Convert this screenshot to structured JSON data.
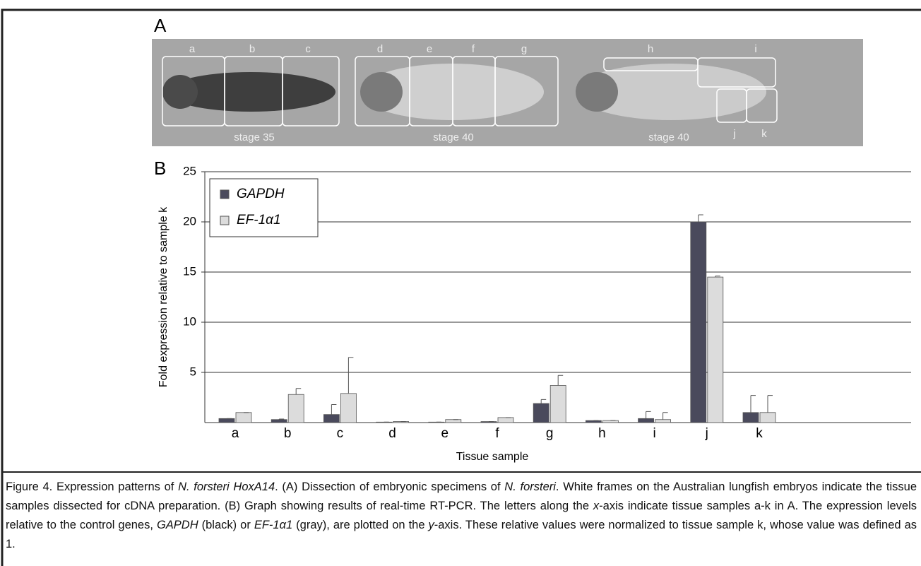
{
  "panel_a": {
    "label": "A",
    "sample_labels": [
      "a",
      "b",
      "c",
      "d",
      "e",
      "f",
      "g",
      "h",
      "i",
      "j",
      "k"
    ],
    "stage_labels": [
      "stage 35",
      "stage 40",
      "stage 40"
    ]
  },
  "panel_b": {
    "label": "B"
  },
  "chart_data": {
    "type": "bar",
    "y_label": "Fold expression relative to sample k",
    "x_label": "Tissue sample",
    "categories": [
      "a",
      "b",
      "c",
      "d",
      "e",
      "f",
      "g",
      "h",
      "i",
      "j",
      "k"
    ],
    "series": [
      {
        "name": "GAPDH",
        "color": "#4a4a5c",
        "values": [
          0.4,
          0.3,
          0.8,
          0.05,
          0.05,
          0.1,
          1.9,
          0.2,
          0.4,
          20,
          1.0
        ],
        "errors": [
          0,
          0.05,
          1.0,
          0,
          0,
          0,
          0.4,
          0,
          0.7,
          0.7,
          1.7
        ]
      },
      {
        "name": "EF-1α1",
        "color": "#dcdcdc",
        "values": [
          1.0,
          2.8,
          2.9,
          0.1,
          0.3,
          0.5,
          3.7,
          0.2,
          0.3,
          14.5,
          1.0
        ],
        "errors": [
          0,
          0.6,
          3.6,
          0,
          0,
          0,
          1.0,
          0,
          0.7,
          0.1,
          1.7
        ]
      }
    ],
    "ylim": [
      0,
      25
    ],
    "yticks": [
      5,
      10,
      15,
      20,
      25
    ],
    "grid": true,
    "legend": "upper left"
  },
  "caption": [
    {
      "text": "Figure 4. Expression patterns of ",
      "italic": false
    },
    {
      "text": "N. forsteri HoxA14",
      "italic": true
    },
    {
      "text": ". (A) Dissection of embryonic specimens of ",
      "italic": false
    },
    {
      "text": "N. forsteri",
      "italic": true
    },
    {
      "text": ". White frames on the Australian lungfish embryos indicate the tissue samples dissected for cDNA preparation. (B) Graph showing results of real-time RT-PCR. The letters along the ",
      "italic": false
    },
    {
      "text": "x",
      "italic": true
    },
    {
      "text": "-axis indicate tissue samples a-k in A. The expression levels relative to the control genes, ",
      "italic": false
    },
    {
      "text": "GAPDH",
      "italic": true
    },
    {
      "text": " (black) or ",
      "italic": false
    },
    {
      "text": "EF-1α1",
      "italic": true
    },
    {
      "text": " (gray), are plotted on the ",
      "italic": false
    },
    {
      "text": "y",
      "italic": true
    },
    {
      "text": "-axis. These relative values were normalized to tissue sample k, whose value was defined as 1.",
      "italic": false
    }
  ]
}
